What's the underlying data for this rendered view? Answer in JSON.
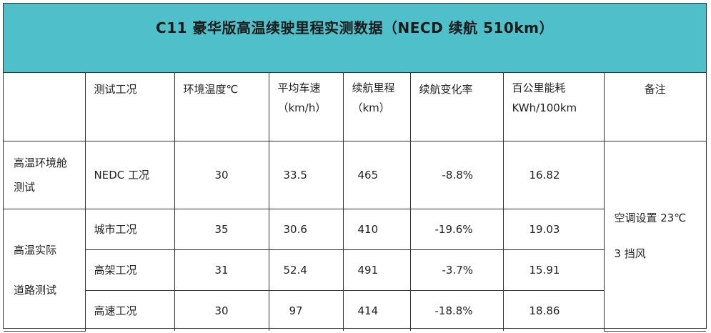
{
  "title": "C11 豪华版高温续驶里程实测数据（NECD 续航 510km）",
  "headers": {
    "condition": "测试工况",
    "temp": "环境温度℃",
    "speed_line1": "平均车速",
    "speed_line2": "（km/h）",
    "range_line1": "续航里程",
    "range_line2": "（km）",
    "change": "续航变化率",
    "energy_line1": "百公里能耗",
    "energy_line2": "KWh/100km",
    "note": "备注"
  },
  "groups": {
    "chamber_line1": "高温环境舱",
    "chamber_line2": "测试",
    "road_line1": "高温实际",
    "road_line2": "道路测试"
  },
  "rows": [
    {
      "condition": "NEDC 工况",
      "temp": "30",
      "speed": "33.5",
      "range": "465",
      "change": "-8.8%",
      "energy": "16.82"
    },
    {
      "condition": "城市工况",
      "temp": "35",
      "speed": "30.6",
      "range": "410",
      "change": "-19.6%",
      "energy": "19.03"
    },
    {
      "condition": "高架工况",
      "temp": "31",
      "speed": "52.4",
      "range": "491",
      "change": "-3.7%",
      "energy": "15.91"
    },
    {
      "condition": "高速工况",
      "temp": "30",
      "speed": "97",
      "range": "414",
      "change": "-18.8%",
      "energy": "18.86"
    }
  ],
  "note": {
    "line1": "空调设置 23℃",
    "line2": "3 挡风"
  }
}
